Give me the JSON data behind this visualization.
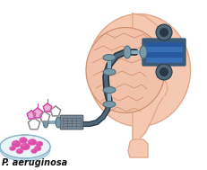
{
  "background_color": "#ffffff",
  "head_skin_color": "#f5c8b2",
  "head_outline_color": "#e0a888",
  "brain_color": "#f0c0a8",
  "brain_outline_color": "#d09070",
  "petri_dish_color": "#e8f4f8",
  "petri_dish_edge_color": "#90b8cc",
  "petri_dish_bottom": "#c8dde8",
  "bacteria_colors": [
    "#d840a0",
    "#e050b0",
    "#cc38a0",
    "#d848a8"
  ],
  "bacteria_highlight": "#f070c0",
  "molecule_gray": "#a8a8a8",
  "molecule_pink": "#e060b8",
  "molecule_pink_fill": "#f0b0d8",
  "tube_outer": "#2a3848",
  "tube_inner": "#506878",
  "dumbbell_body": "#7a9aaa",
  "dumbbell_edge": "#4a6878",
  "dumbbell_bar": "#8aacbc",
  "ms_blue_light": "#6090c8",
  "ms_blue_dark": "#2858a0",
  "ms_blue_mid": "#3870b8",
  "ms_frame": "#3a5a78",
  "ms_gray": "#5a7080",
  "node_outer": "#506878",
  "node_inner": "#283848",
  "corona_body": "#7a8898",
  "corona_edge": "#4a5868",
  "label_text": "P. aeruginosa",
  "label_fontsize": 7.0,
  "label_color": "#111111",
  "figsize": [
    2.31,
    1.89
  ],
  "dpi": 100
}
